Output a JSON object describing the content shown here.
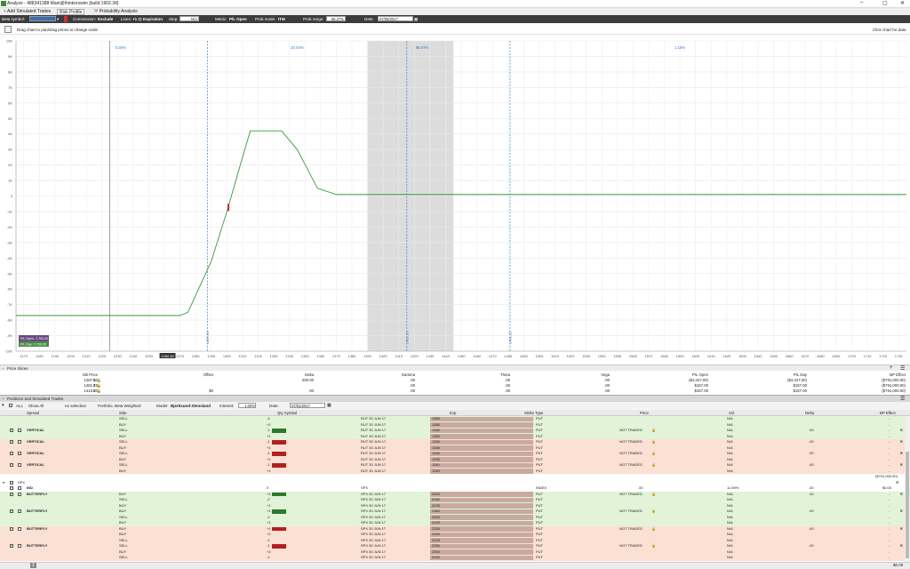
{
  "window": {
    "title": "Analyze - 488341388 Main@thinkorswim [build 1902.34]"
  },
  "tabs": [
    {
      "label": "Add Simulated Trades"
    },
    {
      "label": "Risk Profile"
    },
    {
      "label": "Probability Analysis"
    }
  ],
  "toolbar": {
    "beta_label": "Beta symbol:",
    "commission_label": "Commission:",
    "commission_value": "Exclude",
    "lines_label": "Lines:",
    "lines_value": "+1 @ Expiration",
    "step_label": "Step:",
    "step_value": "N/A",
    "metric_label": "Metric:",
    "metric_value": "P/L Open",
    "prob_mode_label": "Prob mode:",
    "prob_mode_value": "ITM",
    "prob_range_label": "Prob range:",
    "prob_range_value": "68.27%",
    "date_label": "Date:",
    "date_value": "07/08/2017"
  },
  "hint": {
    "left": "Drag chart to pan/drag prices to change scale",
    "right": "Click chart for data"
  },
  "chart_data": {
    "type": "line",
    "ylim": [
      -10000,
      10000
    ],
    "y_ticks": [
      "10K",
      "9K",
      "8K",
      "7K",
      "6K",
      "5K",
      "4K",
      "3K",
      "2K",
      "1K",
      "0",
      "-1K",
      "-2K",
      "-3K",
      "-4K",
      "-5K",
      "-6K",
      "-7K",
      "-8K",
      "-9K",
      "-10K"
    ],
    "x_ticks": [
      "1170",
      "1180",
      "1190",
      "1200",
      "1210",
      "1220",
      "1230",
      "1240",
      "1250",
      "1260",
      "1270",
      "1280",
      "1290",
      "1300",
      "1310",
      "1320",
      "1330",
      "1340",
      "1350",
      "1360",
      "1370",
      "1380",
      "1390",
      "1400",
      "1410",
      "1420",
      "1430",
      "1440",
      "1450",
      "1460",
      "1470",
      "1480",
      "1490",
      "1500",
      "1510",
      "1520",
      "1530",
      "1540",
      "1550",
      "1560",
      "1570",
      "1580",
      "1590",
      "1600",
      "1610",
      "1620",
      "1630",
      "1640",
      "1650",
      "1660",
      "1670",
      "1680",
      "1690",
      "1700",
      "1710",
      "1720",
      "1730"
    ],
    "xlim": [
      1165,
      1735
    ],
    "series": [
      {
        "values": [
          [
            1165,
            -7700
          ],
          [
            1250,
            -7700
          ],
          [
            1270,
            -7700
          ],
          [
            1275,
            -7500
          ],
          [
            1290,
            -4200
          ],
          [
            1300,
            -1000
          ],
          [
            1310,
            2500
          ],
          [
            1315,
            4200
          ],
          [
            1335,
            4200
          ],
          [
            1345,
            3000
          ],
          [
            1358,
            500
          ],
          [
            1370,
            100
          ],
          [
            1735,
            100
          ]
        ]
      }
    ],
    "prob_labels": [
      {
        "x": 1232,
        "text": "0.36%"
      },
      {
        "x": 1345,
        "text": "10.04%"
      },
      {
        "x": 1425,
        "text": "88.57%"
      },
      {
        "x": 1590,
        "text": "1.16%"
      }
    ],
    "vlines": [
      {
        "x": 1287.5,
        "label": "1287.50"
      },
      {
        "x": 1415.2,
        "label": "1415.20"
      },
      {
        "x": 1481.25,
        "label": "1481.25"
      }
    ],
    "shaded": [
      1390,
      1445
    ],
    "cursor_x": 1225,
    "x_highlight": "1260.30",
    "legend": {
      "l1": "P/L Open",
      "v1": "-7,700.00",
      "l2": "P/L Day",
      "v2": "-7,700.00"
    }
  },
  "price_slices": {
    "title": "Price Slices",
    "headers": [
      "Stk Price",
      "Offset",
      "Delta",
      "Gamma",
      "Theta",
      "Vega",
      "P/L Open",
      "P/L Day",
      "BP Effect"
    ],
    "rows": [
      [
        "1287.50",
        "",
        "200.00",
        ".00",
        ".00",
        ".00",
        "($4,347.00)",
        "($4,347.00)",
        "($791,000.00)"
      ],
      [
        "1481.25",
        "",
        "",
        ".00",
        ".00",
        ".00",
        "$157.00",
        "$157.00",
        "($791,000.00)"
      ],
      [
        "1415.20",
        "$0",
        ".00",
        ".00",
        ".00",
        ".00",
        "$157.00",
        "$157.00",
        "($791,000.00)"
      ]
    ]
  },
  "positions": {
    "title": "Positions and Simulated Trades",
    "bar": {
      "all": "ALL",
      "show": "Show All",
      "no_sel": "no selection",
      "portfolio": "Portfolio, Beta Weighted",
      "model_label": "Model:",
      "model": "Bjerksund-Stensland",
      "interest_label": "Interest:",
      "interest": "1.00%",
      "date_label": "Date:",
      "date": "07/01/2017"
    },
    "headers": [
      "Spread",
      "Side",
      "Qty Symbol",
      "Exp",
      "Strike Type",
      "Price",
      "Vol",
      "Delta",
      "BP Effect"
    ],
    "group1": [
      {
        "c": "g",
        "spread": "",
        "side": "SELL",
        "qty": "-4",
        "sym": "RUT 30 JUN 17",
        "strike": "1350",
        "type": "PUT",
        "price": "",
        "vol": "N/A",
        "delta": "",
        "bp": "-"
      },
      {
        "c": "g",
        "spread": "",
        "side": "BUY",
        "qty": "+2",
        "sym": "RUT 30 JUN 17",
        "strike": "1280",
        "type": "PUT",
        "price": "",
        "vol": "N/A",
        "delta": "",
        "bp": "-"
      },
      {
        "c": "g",
        "spread": "VERTICAL",
        "side": "SELL",
        "qty": "-1",
        "sym": "RUT 30 JUN 17",
        "strike": "1360",
        "type": "PUT",
        "price": "NOT TRADED",
        "vol": "N/A",
        "delta": ".00",
        "bp": "-",
        "cb": true
      },
      {
        "c": "g",
        "spread": "",
        "side": "BUY",
        "qty": "+1",
        "sym": "RUT 30 JUN 17",
        "strike": "1350",
        "type": "PUT",
        "price": "",
        "vol": "N/A",
        "delta": "",
        "bp": "-"
      },
      {
        "c": "r",
        "spread": "VERTICAL",
        "side": "SELL",
        "qty": "-1",
        "sym": "RUT 30 JUN 17",
        "strike": "1350",
        "type": "PUT",
        "price": "NOT TRADED",
        "vol": "N/A",
        "delta": ".00",
        "bp": "-",
        "cb": true
      },
      {
        "c": "r",
        "spread": "",
        "side": "BUY",
        "qty": "+1",
        "sym": "RUT 30 JUN 17",
        "strike": "1340",
        "type": "PUT",
        "price": "",
        "vol": "N/A",
        "delta": "",
        "bp": "-"
      },
      {
        "c": "r",
        "spread": "VERTICAL",
        "side": "SELL",
        "qty": "-1",
        "sym": "RUT 30 JUN 17",
        "strike": "1340",
        "type": "PUT",
        "price": "NOT TRADED",
        "vol": "N/A",
        "delta": ".00",
        "bp": "-",
        "cb": true
      },
      {
        "c": "r",
        "spread": "",
        "side": "BUY",
        "qty": "+1",
        "sym": "RUT 30 JUN 17",
        "strike": "1330",
        "type": "PUT",
        "price": "",
        "vol": "N/A",
        "delta": "",
        "bp": "-"
      },
      {
        "c": "r",
        "spread": "VERTICAL",
        "side": "SELL",
        "qty": "-1",
        "sym": "RUT 30 JUN 17",
        "strike": "1150",
        "type": "PUT",
        "price": "NOT TRADED",
        "vol": "N/A",
        "delta": ".00",
        "bp": "-",
        "cb": false
      },
      {
        "c": "r",
        "spread": "",
        "side": "BUY",
        "qty": "+1",
        "sym": "RUT 30 JUN 17",
        "strike": "1340",
        "type": "PUT",
        "price": "",
        "vol": "N/A",
        "delta": "",
        "bp": "-"
      }
    ],
    "group1_total": "($791,000.00)",
    "spx_label": "SPX",
    "group2": [
      {
        "c": "w",
        "spread": "IND",
        "side": "",
        "qty": "0",
        "sym": "SPX",
        "strike": "",
        "type": "INDEX",
        "price": ".00",
        "vol": "11.59%",
        "delta": ".00",
        "bp": "$0.00"
      },
      {
        "c": "g",
        "spread": "BUTTERFLY",
        "side": "BUY",
        "qty": "+1",
        "sym": "SPX 30 JUN 17",
        "strike": "2300",
        "type": "PUT",
        "price": "NOT TRADED",
        "vol": "N/A",
        "delta": ".00",
        "bp": "-",
        "cb": true
      },
      {
        "c": "g",
        "spread": "",
        "side": "SELL",
        "qty": "-2",
        "sym": "SPX 30 JUN 17",
        "strike": "2250",
        "type": "PUT",
        "price": "",
        "vol": "N/A",
        "delta": "",
        "bp": "-"
      },
      {
        "c": "g",
        "spread": "",
        "side": "BUY",
        "qty": "+1",
        "sym": "SPX 30 JUN 17",
        "strike": "2225",
        "type": "PUT",
        "price": "",
        "vol": "N/A",
        "delta": "",
        "bp": "-"
      },
      {
        "c": "g",
        "spread": "BUTTERFLY",
        "side": "BUY",
        "qty": "+1",
        "sym": "SPX 30 JUN 17",
        "strike": "2360",
        "type": "PUT",
        "price": "NOT TRADED",
        "vol": "N/A",
        "delta": ".00",
        "bp": "-",
        "cb": true
      },
      {
        "c": "g",
        "spread": "",
        "side": "SELL",
        "qty": "-2",
        "sym": "SPX 30 JUN 17",
        "strike": "2300",
        "type": "PUT",
        "price": "",
        "vol": "N/A",
        "delta": "",
        "bp": "-"
      },
      {
        "c": "g",
        "spread": "",
        "side": "BUY",
        "qty": "+1",
        "sym": "SPX 30 JUN 17",
        "strike": "2225",
        "type": "PUT",
        "price": "",
        "vol": "N/A",
        "delta": "",
        "bp": "-"
      },
      {
        "c": "r",
        "spread": "BUTTERFLY",
        "side": "BUY",
        "qty": "+1",
        "sym": "SPX 30 JUN 17",
        "strike": "2330",
        "type": "PUT",
        "price": "NOT TRADED",
        "vol": "N/A",
        "delta": ".00",
        "bp": "-",
        "cb": true
      },
      {
        "c": "r",
        "spread": "",
        "side": "BUY",
        "qty": "+2",
        "sym": "SPX 30 JUN 17",
        "strike": "2290",
        "type": "PUT",
        "price": "",
        "vol": "N/A",
        "delta": "",
        "bp": "-"
      },
      {
        "c": "r",
        "spread": "",
        "side": "SELL",
        "qty": "-1",
        "sym": "SPX 30 JUN 17",
        "strike": "2225",
        "type": "PUT",
        "price": "",
        "vol": "N/A",
        "delta": "",
        "bp": "-"
      },
      {
        "c": "r",
        "spread": "BUTTERFLY",
        "side": "SELL",
        "qty": "-1",
        "sym": "SPX 30 JUN 17",
        "strike": "2350",
        "type": "PUT",
        "price": "NOT TRADED",
        "vol": "N/A",
        "delta": ".00",
        "bp": "-",
        "cb": true
      },
      {
        "c": "r",
        "spread": "",
        "side": "BUY",
        "qty": "+2",
        "sym": "SPX 30 JUN 17",
        "strike": "2300",
        "type": "PUT",
        "price": "",
        "vol": "N/A",
        "delta": "",
        "bp": "-"
      },
      {
        "c": "r",
        "spread": "",
        "side": "SELL",
        "qty": "-1",
        "sym": "SPX 30 JUN 17",
        "strike": "2225",
        "type": "PUT",
        "price": "",
        "vol": "N/A",
        "delta": "",
        "bp": "-"
      }
    ],
    "footer_total": "$0.00"
  },
  "colors": {
    "green_row": "#e2f3d8",
    "red_row": "#fbe0d4",
    "curve": "#3a9a3a",
    "shade": "#dcdcdc",
    "vline": "#3a7abf"
  }
}
